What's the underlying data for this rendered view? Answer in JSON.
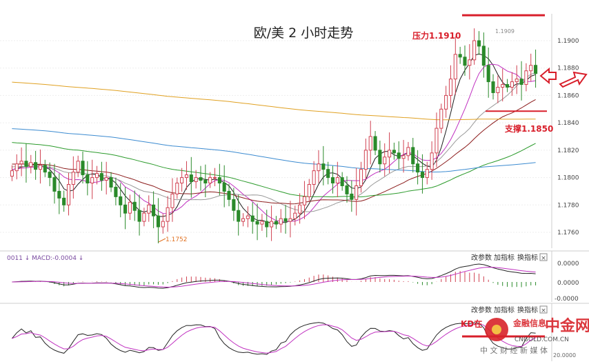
{
  "title": "欧/美 2 小时走势",
  "annotations": {
    "resistance": "压力1.1910",
    "support": "支撑1.1850",
    "low_label": "1.1752",
    "high_label": "1.1909",
    "kd_label": "KD在"
  },
  "colors": {
    "up": "#d04050",
    "down": "#2a8a2a",
    "ma5": "#1a1a1a",
    "ma10": "#c030c0",
    "ma20": "#999999",
    "ma30": "#8b1a1a",
    "ma60": "#2a9a2a",
    "ma120": "#3a8ad0",
    "ma250": "#e0a020",
    "annotation": "#d81e2a"
  },
  "macd_panel": {
    "label": "0011 ↓ MACD:-0.0004 ↓",
    "buttons": [
      "改参数",
      "加指标",
      "换指标"
    ],
    "close": "×",
    "ticks": [
      "0.0000",
      "0.0000",
      "-0.0000"
    ]
  },
  "kd_panel": {
    "buttons": [
      "改参数",
      "加指标",
      "换指标"
    ],
    "close": "×",
    "ticks": [
      "20.0000"
    ]
  },
  "watermark": {
    "brand": "中金网",
    "domain": "CNGOLD.COM.CN",
    "tagline": "中 文 财 经 新 媒 体",
    "stamp": "金融信息"
  },
  "chart_data": {
    "type": "candlestick",
    "title": "欧/美 2 小时走势",
    "y_ticks": [
      "1.1900",
      "1.1880",
      "1.1860",
      "1.1840",
      "1.1820",
      "1.1800",
      "1.1780",
      "1.1760"
    ],
    "ylim": [
      1.1748,
      1.1912
    ],
    "resistance": 1.191,
    "support": 1.185,
    "low": 1.1752,
    "high": 1.1909,
    "closes": [
      1.1805,
      1.181,
      1.1812,
      1.1808,
      1.1811,
      1.1806,
      1.1809,
      1.1804,
      1.18,
      1.179,
      1.1785,
      1.178,
      1.1795,
      1.1804,
      1.1812,
      1.1802,
      1.1796,
      1.18,
      1.1803,
      1.1798,
      1.18,
      1.1793,
      1.1786,
      1.178,
      1.1774,
      1.1782,
      1.1776,
      1.1768,
      1.1774,
      1.178,
      1.1772,
      1.1764,
      1.1768,
      1.1778,
      1.1788,
      1.1796,
      1.18,
      1.1802,
      1.1797,
      1.18,
      1.1798,
      1.1796,
      1.18,
      1.18,
      1.1796,
      1.179,
      1.1784,
      1.1776,
      1.1768,
      1.177,
      1.1772,
      1.1768,
      1.1766,
      1.1768,
      1.1764,
      1.1768,
      1.1766,
      1.177,
      1.1768,
      1.177,
      1.1774,
      1.178,
      1.1786,
      1.1795,
      1.1805,
      1.181,
      1.1806,
      1.18,
      1.1796,
      1.18,
      1.1794,
      1.1788,
      1.1784,
      1.1794,
      1.1806,
      1.182,
      1.183,
      1.182,
      1.181,
      1.1815,
      1.182,
      1.1818,
      1.1814,
      1.1816,
      1.1822,
      1.181,
      1.1804,
      1.18,
      1.1806,
      1.1818,
      1.1836,
      1.185,
      1.186,
      1.1872,
      1.189,
      1.1888,
      1.1882,
      1.1886,
      1.19,
      1.1896,
      1.1882,
      1.187,
      1.1862,
      1.1866,
      1.1868,
      1.1866,
      1.187,
      1.1872,
      1.1868,
      1.1878,
      1.1882,
      1.1876
    ],
    "ma_periods": [
      5,
      10,
      20,
      30,
      60,
      120,
      250
    ]
  }
}
